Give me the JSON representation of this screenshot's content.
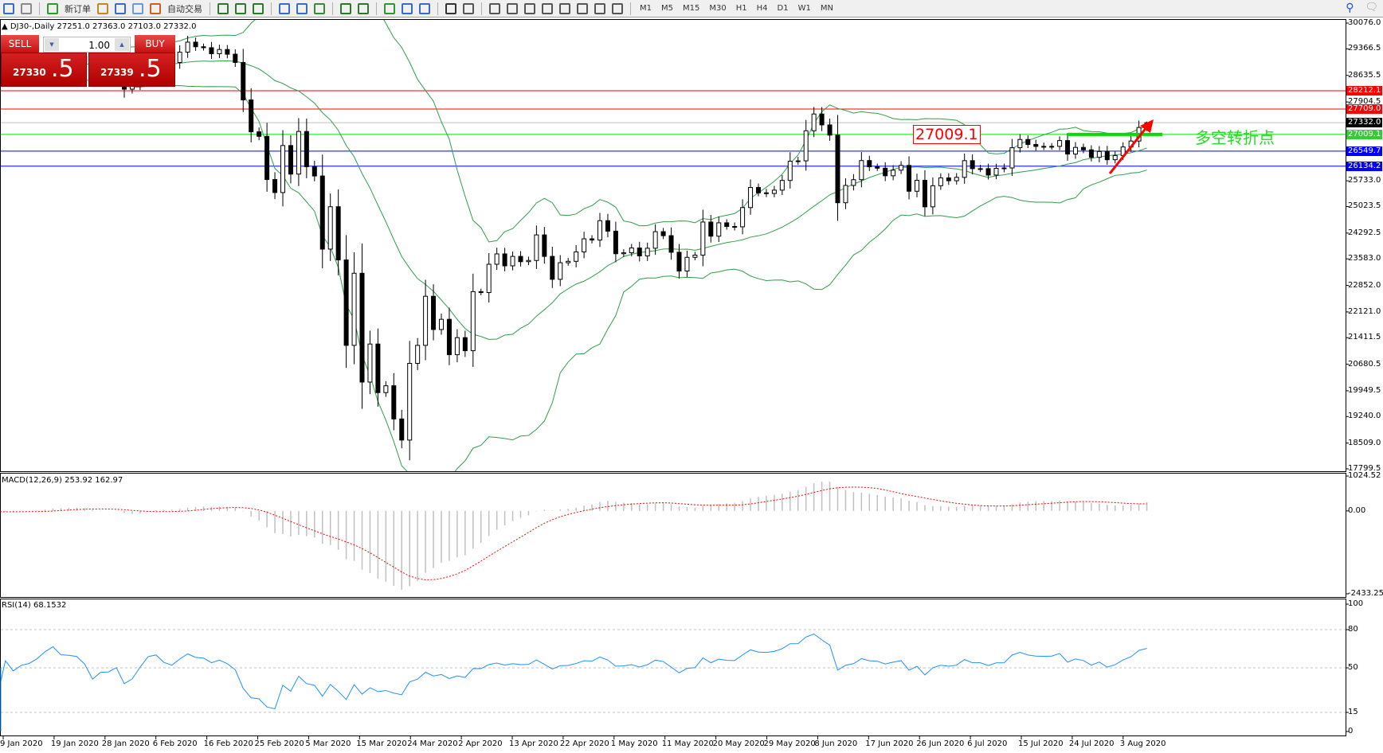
{
  "toolbar": {
    "new_order": "新订单",
    "auto_trading": "自动交易",
    "timeframes": [
      "M1",
      "M5",
      "M15",
      "M30",
      "H1",
      "H4",
      "D1",
      "W1",
      "MN"
    ],
    "icons": [
      "new-chart-icon",
      "navigator-icon",
      "new-order-icon",
      "metaeditor-icon",
      "data-icon",
      "signals-icon",
      "auto-trading-icon",
      "bar-chart-icon",
      "candlestick-icon",
      "line-chart-icon",
      "zoom-in-icon",
      "zoom-out-icon",
      "tile-windows-icon",
      "autoscroll-icon",
      "chart-shift-icon",
      "indicators-icon",
      "periods-icon",
      "templates-icon",
      "cursor-icon",
      "crosshair-icon",
      "vertical-line-icon",
      "horizontal-line-icon",
      "trendline-icon",
      "channel-icon",
      "fibonacci-icon",
      "text-icon",
      "text-label-icon",
      "arrows-icon"
    ]
  },
  "chart": {
    "title": "DJ30-,Daily  27251.0 27363.0 27103.0 27332.0",
    "last_bar": {
      "open": 27251.0,
      "high": 27363.0,
      "low": 27103.0,
      "close": 27332.0
    },
    "closes": [
      28868,
      28634,
      28703,
      28584,
      28745,
      28956,
      28824,
      28907,
      28940,
      29030,
      29196,
      29348,
      29196,
      29186,
      29160,
      28990,
      28535,
      28723,
      28734,
      28859,
      28256,
      28400,
      28807,
      29290,
      29379,
      29102,
      28990,
      29276,
      29551,
      29424,
      29398,
      29232,
      29348,
      29219,
      28992,
      27961,
      27081,
      26957,
      25767,
      25409,
      26703,
      25917,
      27091,
      26121,
      25865,
      23851,
      25018,
      23553,
      21200,
      23186,
      20189,
      21237,
      19899,
      20087,
      19174,
      18592,
      20704,
      21200,
      22552,
      21637,
      21917,
      20943,
      21413,
      21053,
      22680,
      22654,
      23434,
      23719,
      23390,
      23650,
      23505,
      23538,
      24242,
      23650,
      23019,
      23476,
      23515,
      23775,
      24134,
      24101,
      24634,
      24346,
      23724,
      23750,
      23883,
      23664,
      23875,
      24331,
      24221,
      23764,
      23248,
      23625,
      23685,
      24597,
      24207,
      24575,
      24474,
      24465,
      24995,
      25548,
      25401,
      25383,
      25475,
      25742,
      26270,
      26282,
      27111,
      27572,
      27272,
      26990,
      25128,
      25605,
      25763,
      26290,
      26119,
      26080,
      25871,
      26025,
      26156,
      25445,
      25745,
      25015,
      25596,
      25813,
      25734,
      25827,
      26287,
      26067,
      26067,
      25890,
      26075,
      26086,
      26643,
      26870,
      26734,
      26680,
      26672,
      26681,
      26840,
      26469,
      26652,
      26585,
      26379,
      26539,
      26313,
      26428,
      26664,
      26828,
      27201
    ],
    "price_axis": [
      "30076.0",
      "29366.5",
      "28635.5",
      "27904.5",
      "25733.0",
      "25023.5",
      "24292.5",
      "23583.0",
      "22852.0",
      "22121.0",
      "21411.5",
      "20680.5",
      "19949.5",
      "19240.0",
      "18509.0",
      "17799.5"
    ],
    "price_range": [
      17799.5,
      30076.0
    ],
    "levels": [
      {
        "value": "28212.1",
        "color": "#ff0000"
      },
      {
        "value": "27709.0",
        "color": "#ff0000"
      },
      {
        "value": "27332.0",
        "color": "#000000",
        "line": "#c0c0c0"
      },
      {
        "value": "27009.1",
        "color": "#33cc33",
        "line": "#00e000"
      },
      {
        "value": "26549.7",
        "color": "#0000ff"
      },
      {
        "value": "26134.2",
        "color": "#0000ff"
      }
    ],
    "annotation_box": "27009.1",
    "annotation_text": "多空转折点",
    "dates": [
      "9 Jan 2020",
      "19 Jan 2020",
      "28 Jan 2020",
      "6 Feb 2020",
      "16 Feb 2020",
      "25 Feb 2020",
      "5 Mar 2020",
      "15 Mar 2020",
      "24 Mar 2020",
      "2 Apr 2020",
      "13 Apr 2020",
      "22 Apr 2020",
      "1 May 2020",
      "11 May 2020",
      "20 May 2020",
      "29 May 2020",
      "8 Jun 2020",
      "17 Jun 2020",
      "26 Jun 2020",
      "6 Jul 2020",
      "15 Jul 2020",
      "24 Jul 2020",
      "3 Aug 2020"
    ]
  },
  "trade_panel": {
    "sell": "SELL",
    "buy": "BUY",
    "lot": "1.00",
    "sell_price_main": "27330",
    "sell_price_frac": ".5",
    "buy_price_main": "27339",
    "buy_price_frac": ".5"
  },
  "macd": {
    "label": "MACD(12,26,9) 253.92 162.97",
    "axis": [
      "1024.52",
      "0.00",
      "-2433.25"
    ],
    "range": [
      -2433.25,
      1024.52
    ]
  },
  "rsi": {
    "label": "RSI(14) 68.1532",
    "axis": [
      "100",
      "80",
      "50",
      "15",
      "0"
    ],
    "levels": [
      80,
      50,
      15
    ]
  },
  "colors": {
    "bands": "#2e9e4a",
    "signal": "#ff0000",
    "rsi": "#1e90ff",
    "histogram": "#c0c0c0"
  }
}
